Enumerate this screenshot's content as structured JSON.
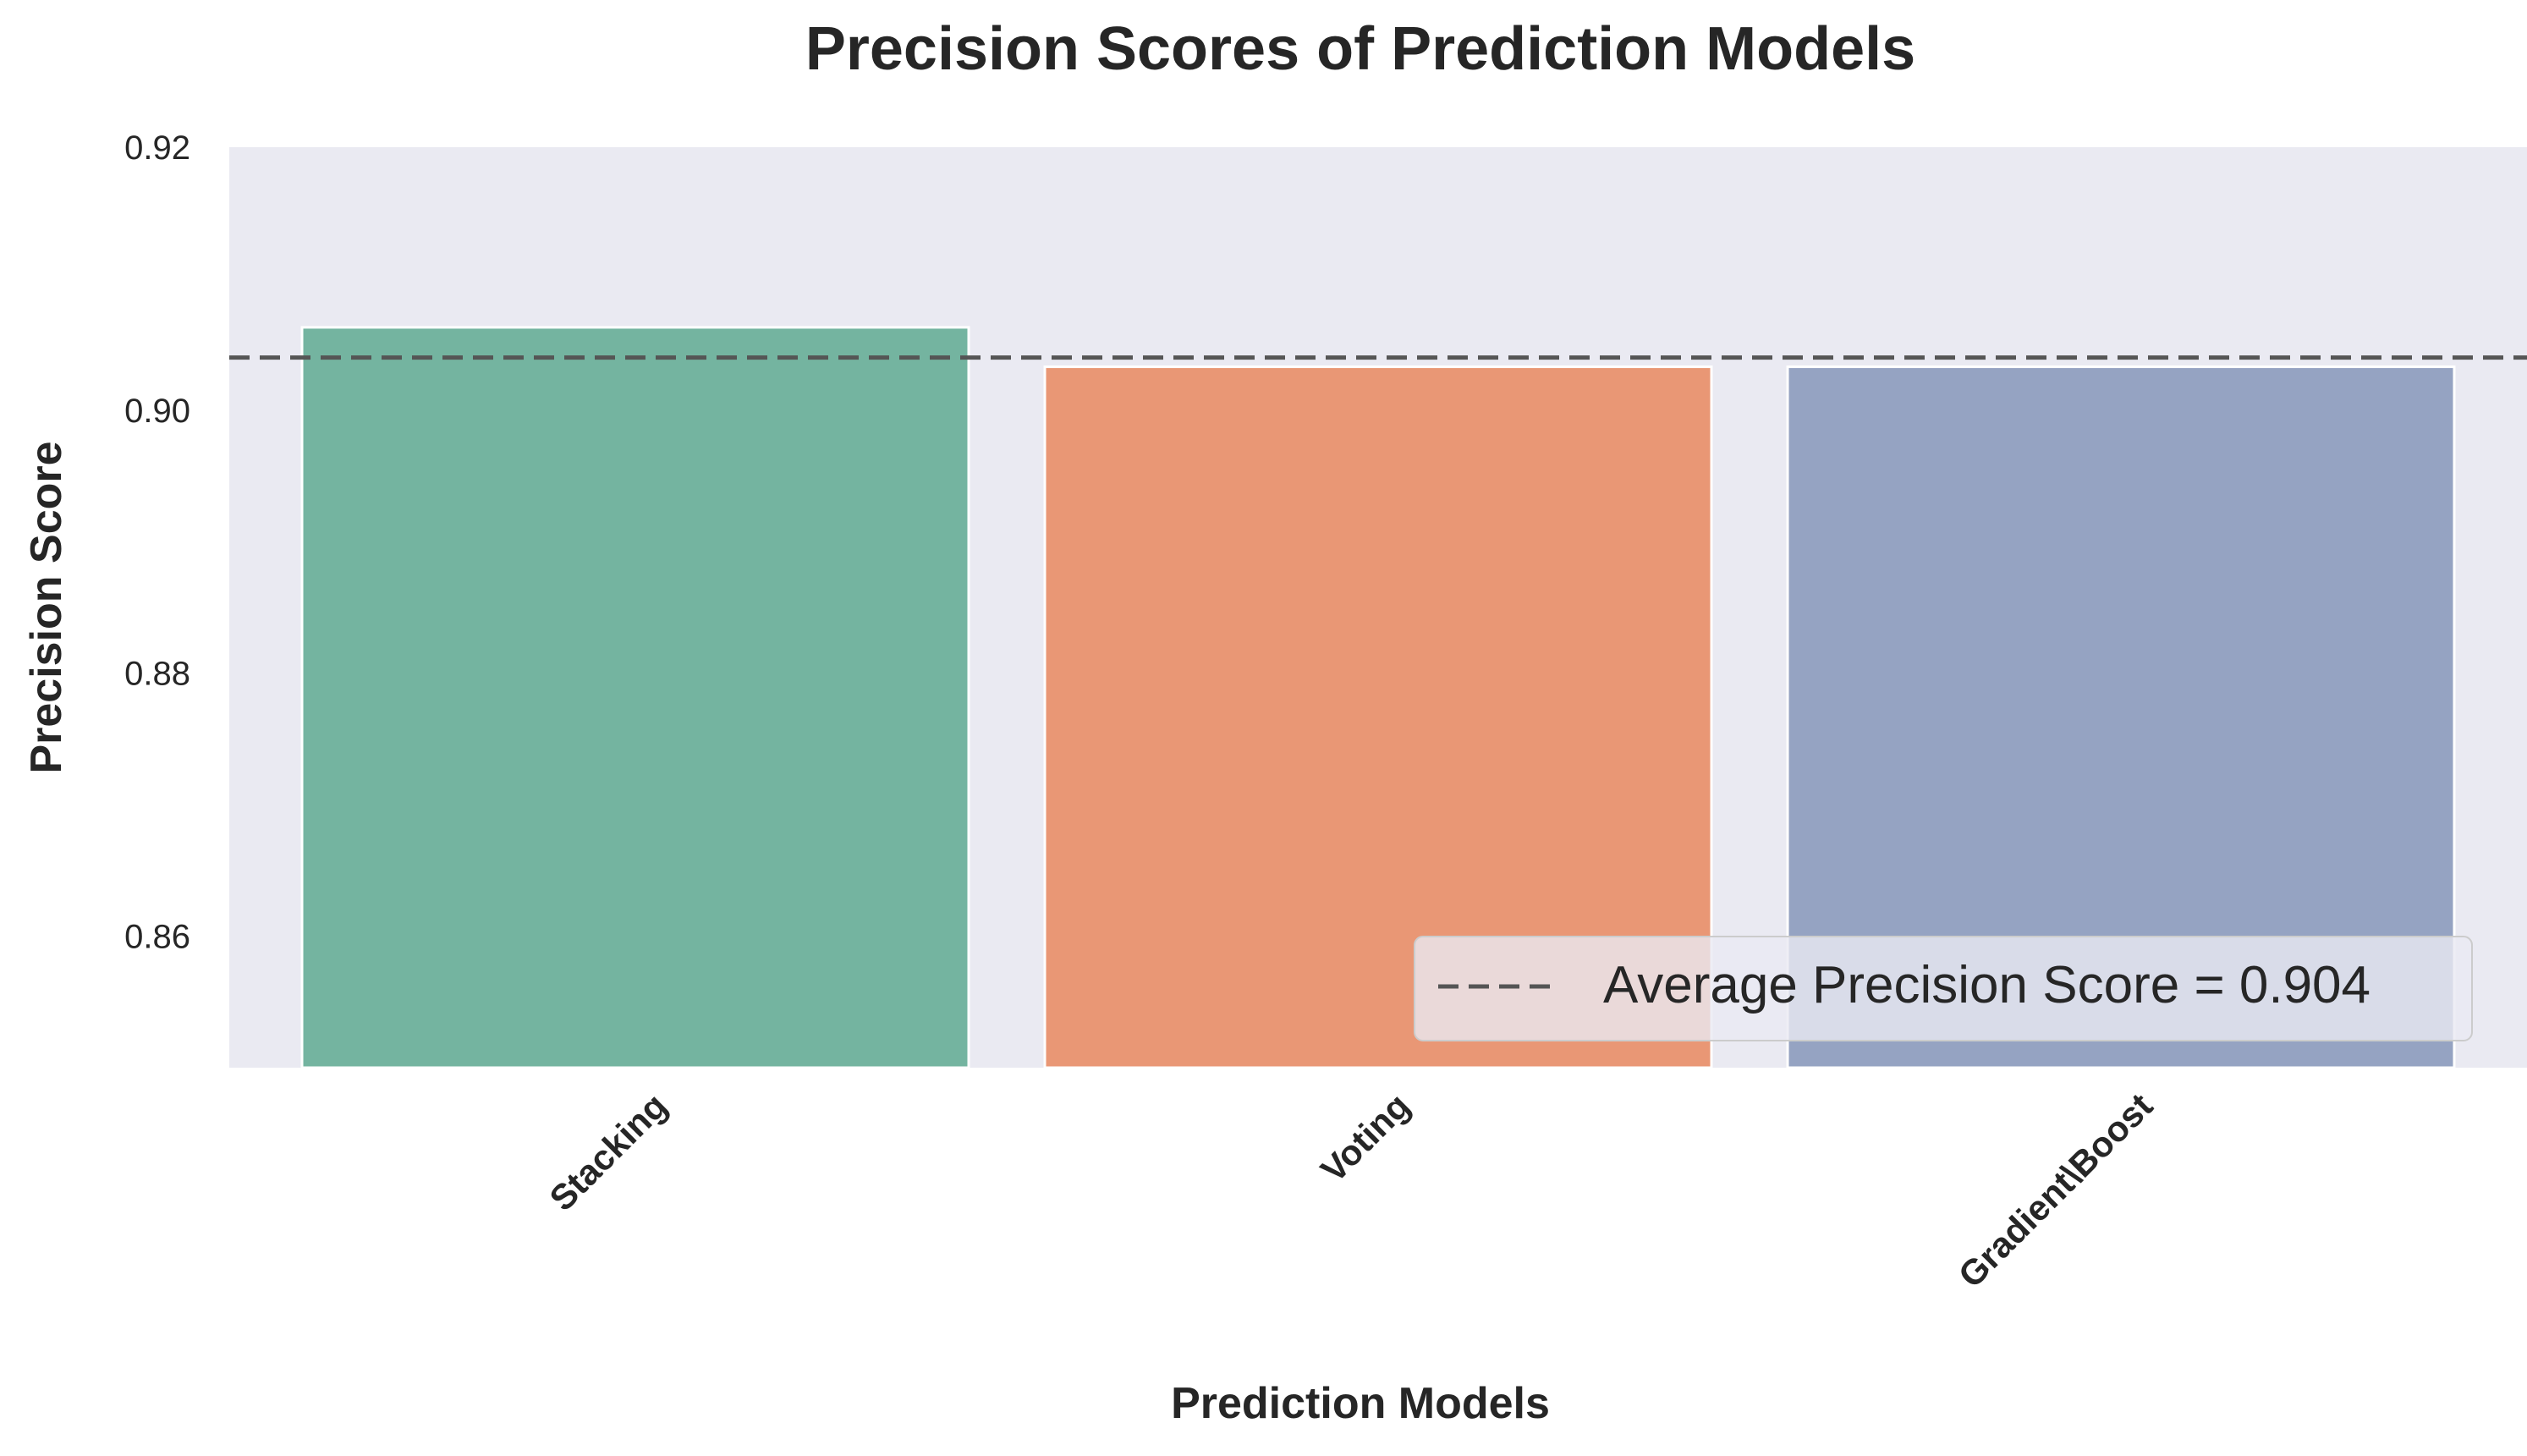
{
  "chart_data": {
    "type": "bar",
    "title": "Precision Scores of Prediction Models",
    "xlabel": "Prediction Models",
    "ylabel": "Precision Score",
    "categories": [
      "Stacking",
      "Voting",
      "Gradient\\Boost"
    ],
    "values": [
      0.9063,
      0.9033,
      0.9033
    ],
    "bar_colors": [
      "#74b4a0",
      "#e99775",
      "#95a3c2"
    ],
    "ylim": [
      0.85,
      0.92
    ],
    "yticks": [
      0.86,
      0.88,
      0.9,
      0.92
    ],
    "ytick_labels": [
      "0.86",
      "0.88",
      "0.90",
      "0.92"
    ],
    "average_line": {
      "value": 0.904,
      "label": "Average Precision Score = 0.904",
      "color": "#555555",
      "style": "dashed"
    },
    "legend": {
      "placement": "lower-right",
      "entries": [
        "Average Precision Score = 0.904"
      ]
    },
    "grid": false,
    "background_color": "#eaeaf2"
  }
}
